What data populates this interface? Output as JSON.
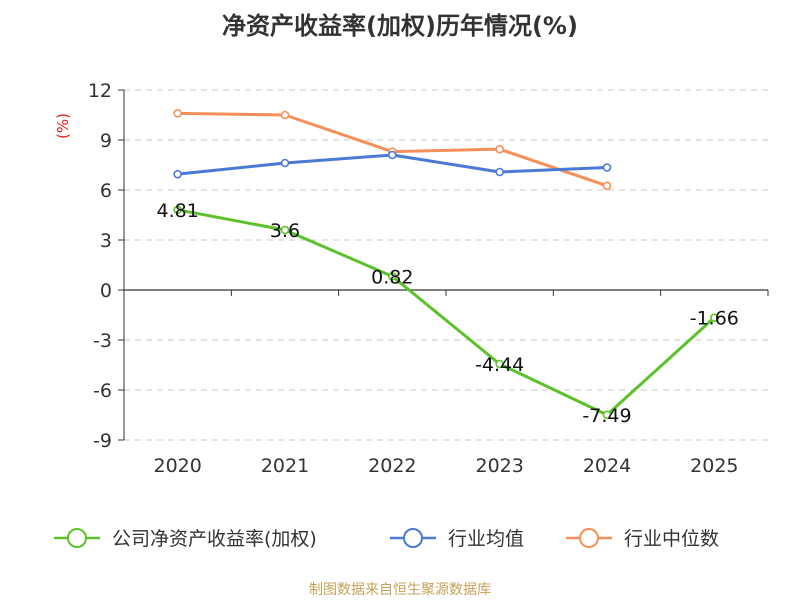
{
  "chart_data": {
    "type": "line",
    "title": "净资产收益率(加权)历年情况(%)",
    "ylabel": "(%)",
    "xlabel": "",
    "categories": [
      "2020",
      "2021",
      "2022",
      "2023",
      "2024",
      "2025"
    ],
    "ylim": [
      -9,
      12
    ],
    "yticks": [
      12,
      9,
      6,
      3,
      0,
      -3,
      -6,
      -9
    ],
    "grid": true,
    "legend_position": "bottom",
    "series": [
      {
        "name": "公司净资产收益率(加权)",
        "color": "#5cc22b",
        "values": [
          4.81,
          3.6,
          0.82,
          -4.44,
          -7.49,
          -1.66
        ],
        "labels": [
          "4.81",
          "3.6",
          "0.82",
          "-4.44",
          "-7.49",
          "-1.66"
        ]
      },
      {
        "name": "行业均值",
        "color": "#4a7ad6",
        "values": [
          6.95,
          7.62,
          8.1,
          7.08,
          7.35,
          null
        ]
      },
      {
        "name": "行业中位数",
        "color": "#f5905a",
        "values": [
          10.6,
          10.5,
          8.3,
          8.45,
          6.25,
          null
        ]
      }
    ],
    "source": "制图数据来自恒生聚源数据库"
  }
}
